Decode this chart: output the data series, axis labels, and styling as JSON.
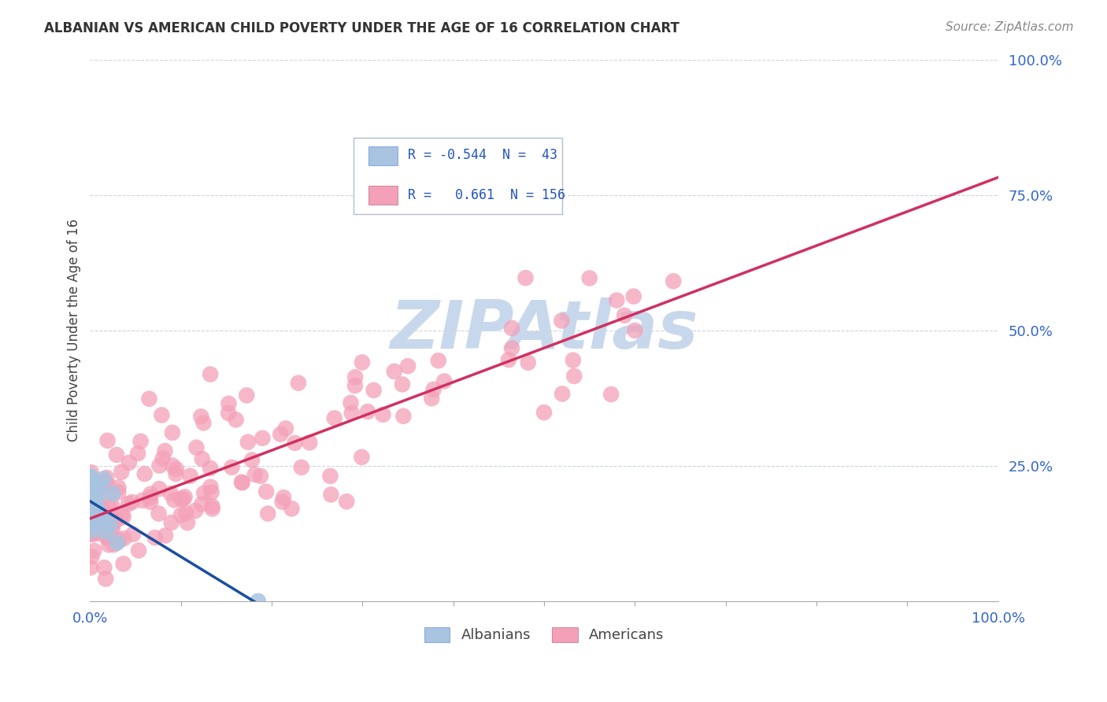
{
  "title": "ALBANIAN VS AMERICAN CHILD POVERTY UNDER THE AGE OF 16 CORRELATION CHART",
  "source": "Source: ZipAtlas.com",
  "ylabel": "Child Poverty Under the Age of 16",
  "xlim": [
    0,
    1.0
  ],
  "ylim": [
    0,
    1.0
  ],
  "albanian_color": "#a8c4e0",
  "american_color": "#f4a0b8",
  "albanian_line_color": "#1a4fa0",
  "american_line_color": "#d03060",
  "R_albanian": -0.544,
  "N_albanian": 43,
  "R_american": 0.661,
  "N_american": 156,
  "watermark_color": "#c8d8ec",
  "grid_color": "#c8d0dc"
}
